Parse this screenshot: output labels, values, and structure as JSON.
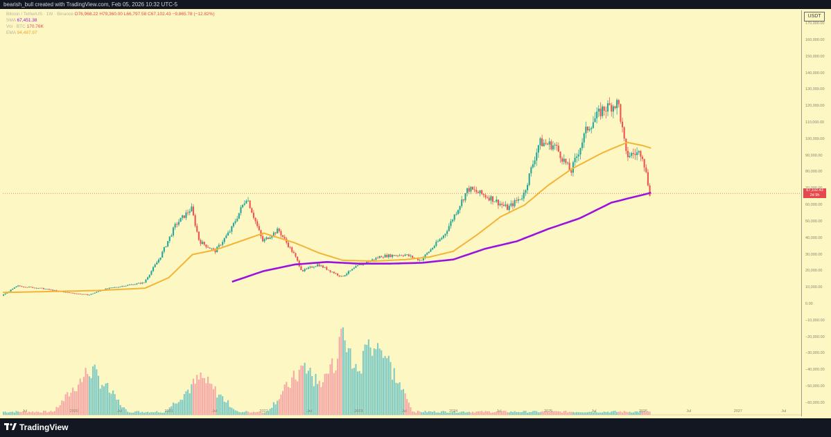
{
  "header": {
    "attribution": "bearish_bull created with TradingView.com, Feb 05, 2026 10:32 UTC-5"
  },
  "legend": {
    "symbol_line": "Bitcoin / TetherUS · 1W · Binance",
    "ohlc_o": "O76,968.22",
    "ohlc_h": "H79,360.00",
    "ohlc_l": "L66,797.58",
    "ohlc_c": "C67,102.43",
    "ohlc_change": "−9,865.78 (−12.82%)",
    "sma_label": "SMA",
    "sma_value": "67,451.38",
    "vol_label": "Vol · BTC",
    "vol_value": "170.76K",
    "ema_label": "EMA",
    "ema_value": "94,487.97"
  },
  "price_axis": {
    "currency": "USDT",
    "current_price": "67,102.43",
    "current_countdown": "2d 9h"
  },
  "branding": {
    "logo_text": "TradingView"
  },
  "colors": {
    "background": "#fdf7c3",
    "frame": "#131722",
    "up": "#26a69a",
    "down": "#ef5350",
    "ema": "#f5b335",
    "sma": "#9b12dc",
    "price_tag": "#e5484d"
  },
  "chart_data": {
    "type": "candlestick",
    "title": "Bitcoin / TetherUS · 1W · Binance",
    "y_axis": {
      "ticks": [
        -60000,
        -50000,
        -40000,
        -30000,
        -20000,
        -10000,
        0,
        10000,
        20000,
        30000,
        40000,
        50000,
        60000,
        70000,
        80000,
        90000,
        100000,
        110000,
        120000,
        130000,
        140000,
        150000,
        160000,
        170000
      ],
      "ylim": [
        -68000,
        178000
      ]
    },
    "x_axis": {
      "ticks": [
        "Jul",
        "2020",
        "Jul",
        "2021",
        "Jul",
        "2022",
        "Jul",
        "2023",
        "Jul",
        "2024",
        "Jul",
        "2025",
        "Jul",
        "2026",
        "Jul",
        "2027",
        "Jul"
      ],
      "range": [
        "2019-04",
        "2027-09"
      ]
    },
    "price_path": [
      [
        "2019-04",
        5000
      ],
      [
        "2019-06",
        11000
      ],
      [
        "2019-09",
        9500
      ],
      [
        "2019-12",
        7200
      ],
      [
        "2020-03",
        5500
      ],
      [
        "2020-05",
        9000
      ],
      [
        "2020-08",
        11500
      ],
      [
        "2020-10",
        13000
      ],
      [
        "2020-12",
        28000
      ],
      [
        "2021-02",
        48000
      ],
      [
        "2021-04",
        58000
      ],
      [
        "2021-05",
        38000
      ],
      [
        "2021-07",
        32000
      ],
      [
        "2021-09",
        45000
      ],
      [
        "2021-11",
        65000
      ],
      [
        "2022-01",
        38000
      ],
      [
        "2022-03",
        45000
      ],
      [
        "2022-05",
        30000
      ],
      [
        "2022-06",
        20000
      ],
      [
        "2022-08",
        24000
      ],
      [
        "2022-11",
        16500
      ],
      [
        "2023-01",
        23000
      ],
      [
        "2023-04",
        29000
      ],
      [
        "2023-07",
        30000
      ],
      [
        "2023-09",
        26500
      ],
      [
        "2023-12",
        42000
      ],
      [
        "2024-03",
        70000
      ],
      [
        "2024-06",
        64000
      ],
      [
        "2024-08",
        58000
      ],
      [
        "2024-10",
        66000
      ],
      [
        "2024-12",
        98000
      ],
      [
        "2025-02",
        96000
      ],
      [
        "2025-04",
        80000
      ],
      [
        "2025-06",
        106000
      ],
      [
        "2025-08",
        118000
      ],
      [
        "2025-10",
        122000
      ],
      [
        "2025-11",
        90000
      ],
      [
        "2026-01",
        92000
      ],
      [
        "2026-02",
        67102
      ]
    ],
    "series": [
      {
        "name": "EMA",
        "color": "#f5b335",
        "points": [
          [
            "2019-04",
            7000
          ],
          [
            "2019-10",
            7600
          ],
          [
            "2020-04",
            8200
          ],
          [
            "2020-10",
            9600
          ],
          [
            "2021-01",
            16000
          ],
          [
            "2021-04",
            30000
          ],
          [
            "2021-07",
            33000
          ],
          [
            "2021-10",
            38000
          ],
          [
            "2022-01",
            43000
          ],
          [
            "2022-05",
            37000
          ],
          [
            "2022-08",
            31000
          ],
          [
            "2022-11",
            26500
          ],
          [
            "2023-03",
            26000
          ],
          [
            "2023-07",
            27000
          ],
          [
            "2023-10",
            28500
          ],
          [
            "2024-01",
            32000
          ],
          [
            "2024-04",
            42000
          ],
          [
            "2024-07",
            53000
          ],
          [
            "2024-10",
            60000
          ],
          [
            "2025-01",
            72000
          ],
          [
            "2025-04",
            82000
          ],
          [
            "2025-08",
            92000
          ],
          [
            "2025-11",
            98000
          ],
          [
            "2026-01",
            96000
          ],
          [
            "2026-02",
            94487
          ]
        ]
      },
      {
        "name": "SMA",
        "color": "#9b12dc",
        "points": [
          [
            "2021-09",
            13500
          ],
          [
            "2022-01",
            20000
          ],
          [
            "2022-05",
            24000
          ],
          [
            "2022-09",
            25500
          ],
          [
            "2023-01",
            24500
          ],
          [
            "2023-05",
            24500
          ],
          [
            "2023-09",
            25000
          ],
          [
            "2024-01",
            27000
          ],
          [
            "2024-05",
            33500
          ],
          [
            "2024-09",
            38000
          ],
          [
            "2025-01",
            45500
          ],
          [
            "2025-05",
            52000
          ],
          [
            "2025-09",
            61500
          ],
          [
            "2026-02",
            67451
          ]
        ]
      }
    ],
    "volume": {
      "name": "Vol · BTC",
      "last": "170.76K",
      "peaks": [
        [
          "2020-03",
          0.55
        ],
        [
          "2021-05",
          0.45
        ],
        [
          "2022-06",
          0.58
        ],
        [
          "2022-11",
          0.88
        ],
        [
          "2023-03",
          0.95
        ]
      ]
    }
  }
}
